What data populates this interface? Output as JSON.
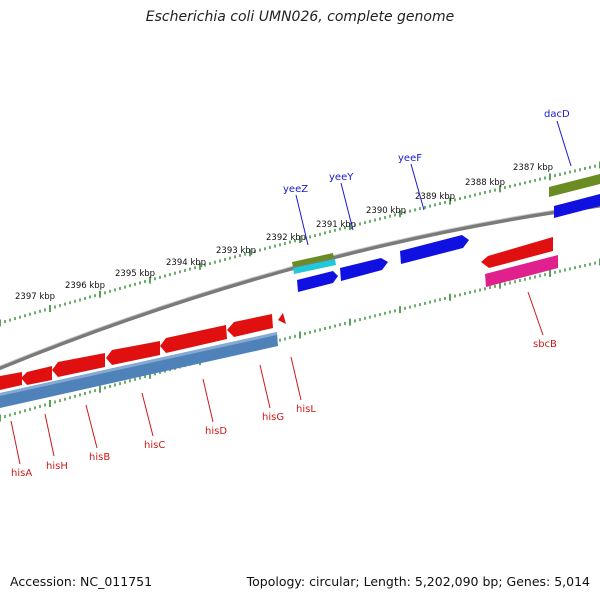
{
  "title": "Escherichia coli UMN026, complete genome",
  "accession": "Accession: NC_011751",
  "summary": "Topology: circular; Length: 5,202,090 bp; Genes: 5,014",
  "ticks": [
    "2387 kbp",
    "2388 kbp",
    "2389 kbp",
    "2390 kbp",
    "2391 kbp",
    "2392 kbp",
    "2393 kbp",
    "2394 kbp",
    "2395 kbp",
    "2396 kbp",
    "2397 kbp"
  ],
  "genes_forward": [
    "dacD",
    "yeeF",
    "yeeY",
    "yeeZ"
  ],
  "genes_reverse": [
    "sbcB",
    "hisL",
    "hisG",
    "hisD",
    "hisC",
    "hisB",
    "hisH",
    "hisA"
  ],
  "colors": {
    "backbone": "#8a8a8a",
    "ticks": "#2e8b2e",
    "cds_forward": "#1010e0",
    "cds_reverse": "#e01010",
    "gene_blue_track": "#4f82b8",
    "olive": "#6b8c23",
    "cyan": "#20c8d8",
    "magenta": "#e0208c",
    "label_blue": "#1a1ad0",
    "label_red": "#cc1a1a"
  }
}
